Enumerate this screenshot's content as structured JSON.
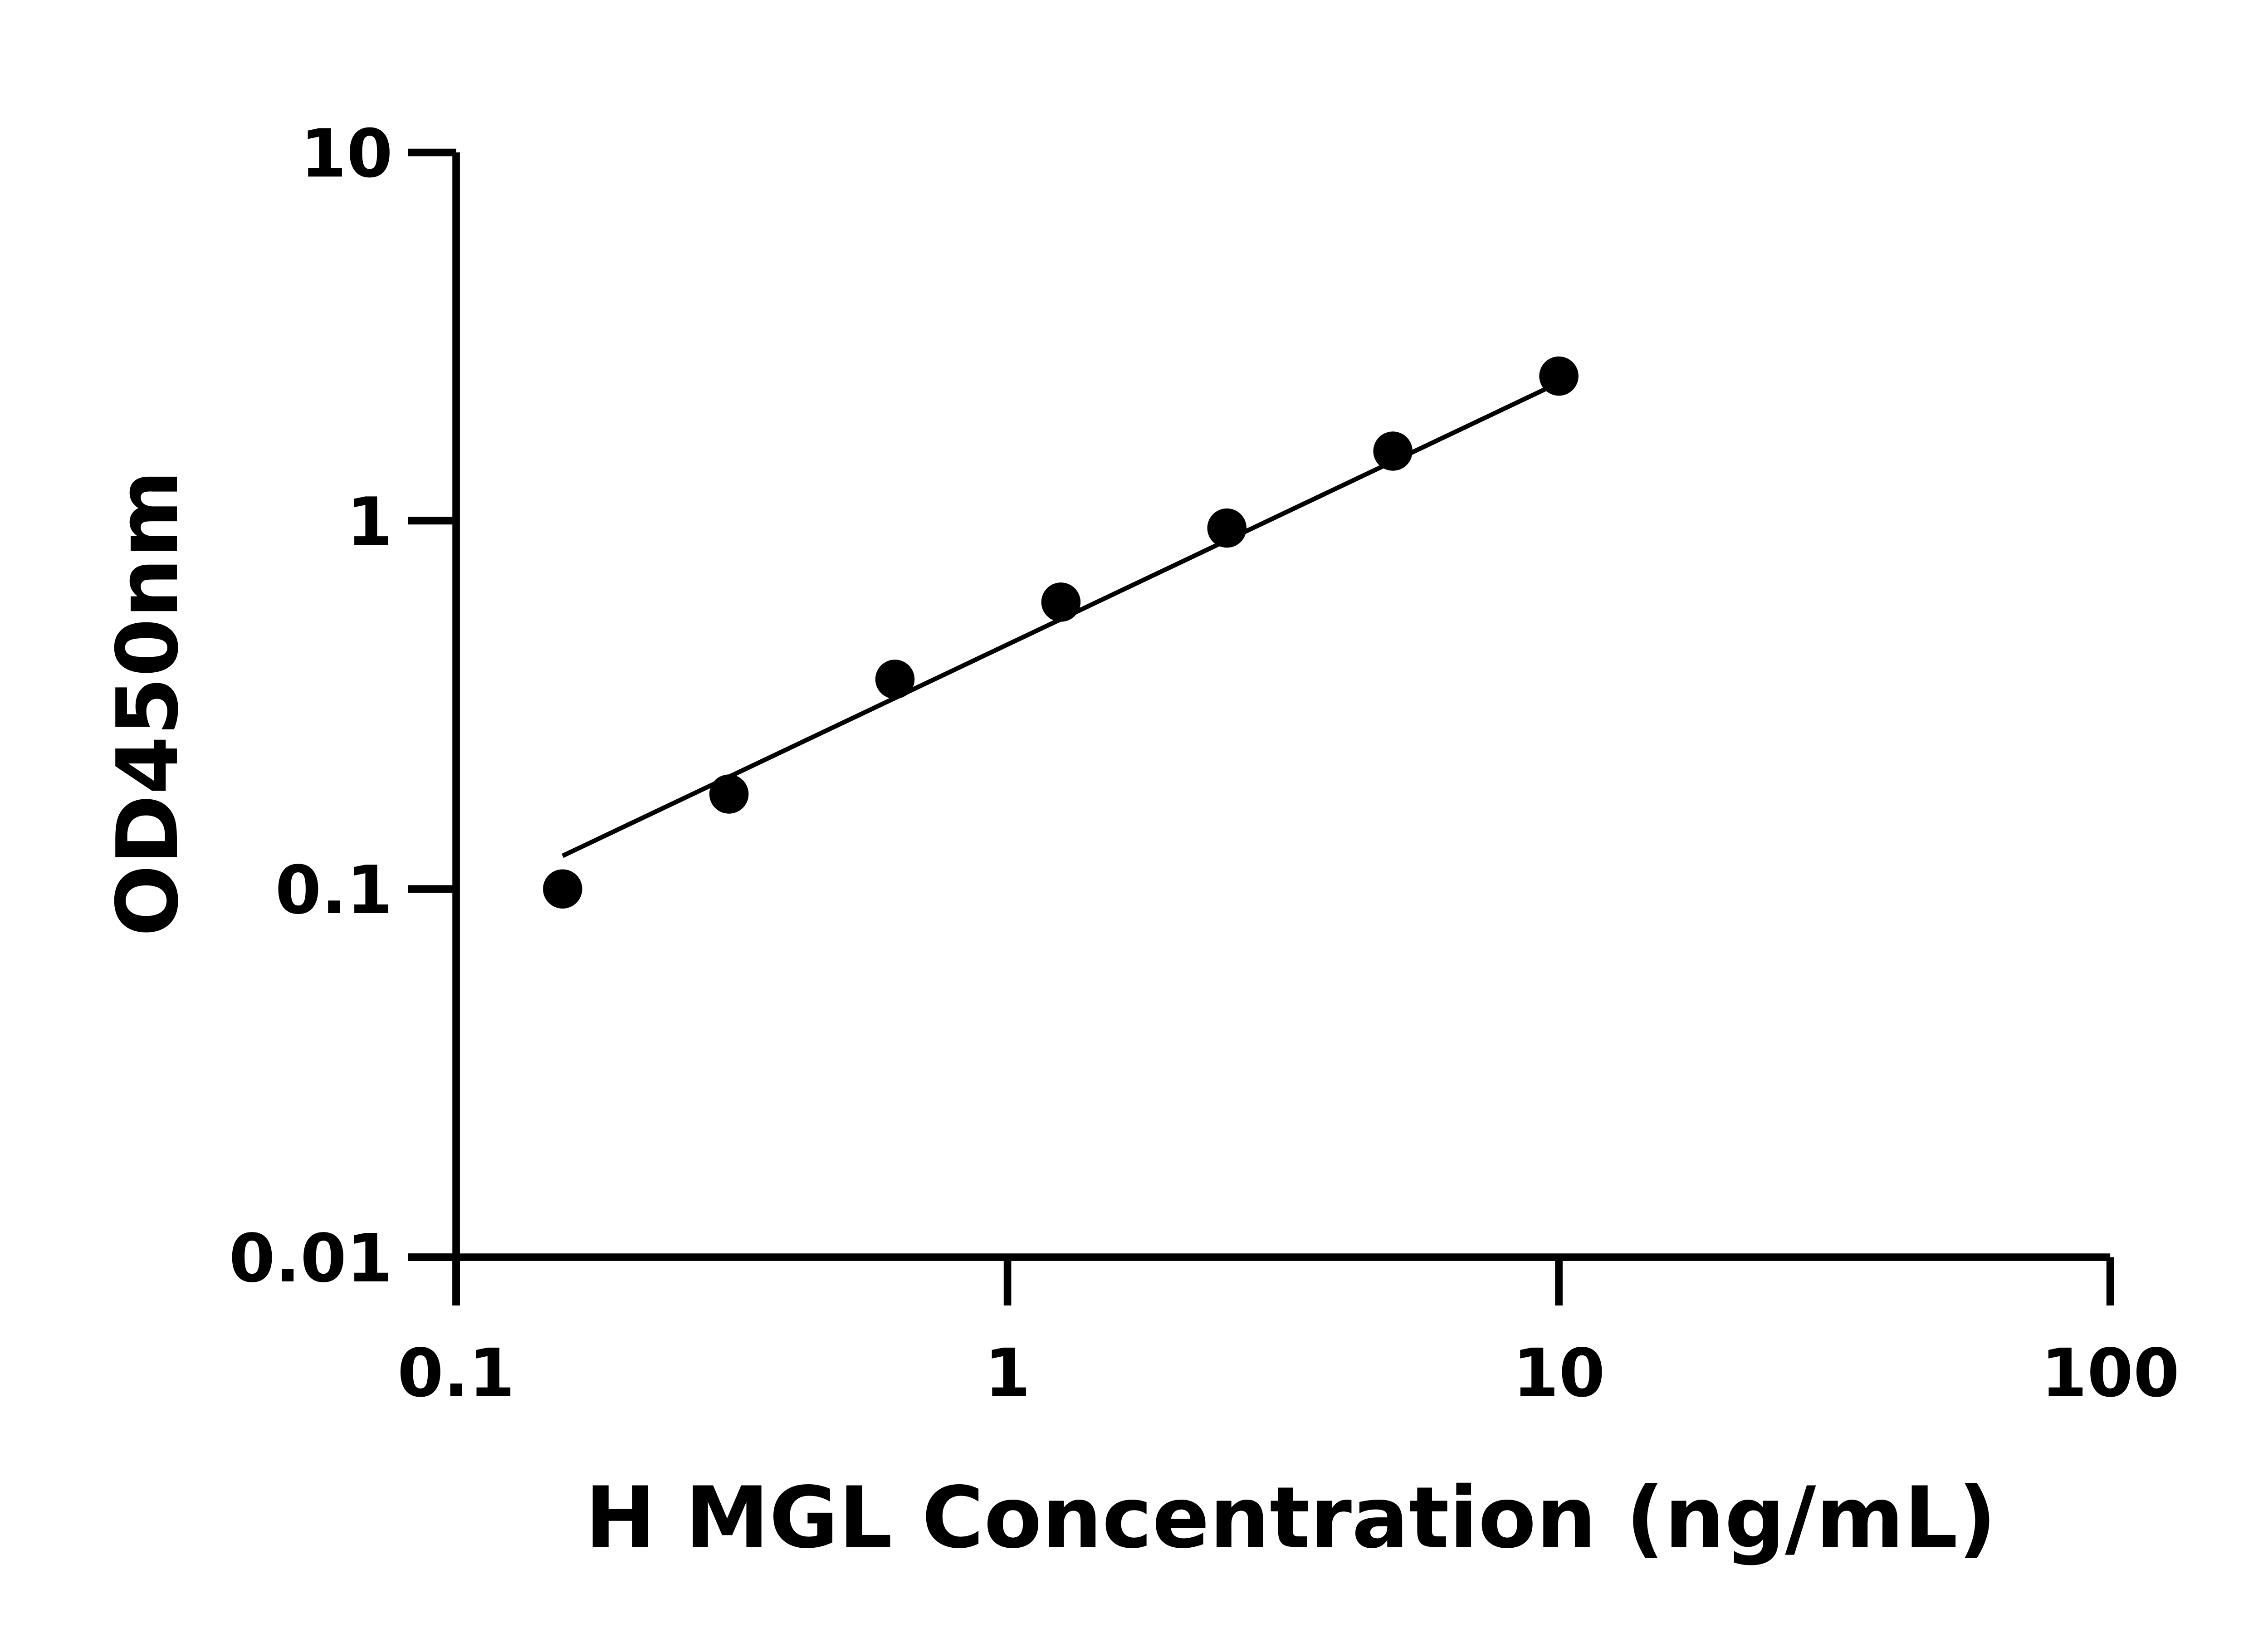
{
  "chart_data": {
    "type": "scatter",
    "title": "",
    "xlabel": "H MGL Concentration (ng/mL)",
    "ylabel": "OD450nm",
    "xscale": "log",
    "yscale": "log",
    "xlim": [
      0.1,
      100
    ],
    "ylim": [
      0.01,
      10
    ],
    "xticks": [
      "0.1",
      "1",
      "10",
      "100"
    ],
    "yticks": [
      "0.01",
      "0.1",
      "1",
      "10"
    ],
    "grid": false,
    "legend": "none",
    "series": [
      {
        "x": [
          0.156,
          0.3125,
          0.625,
          1.25,
          2.5,
          5,
          10
        ],
        "y": [
          0.1,
          0.181,
          0.371,
          0.601,
          0.955,
          1.545,
          2.47
        ],
        "marker": "filled-circle",
        "color": "#000000"
      }
    ],
    "fit_line": {
      "x": [
        0.156,
        10
      ],
      "y": [
        0.123,
        2.37
      ],
      "color": "#000000"
    }
  }
}
